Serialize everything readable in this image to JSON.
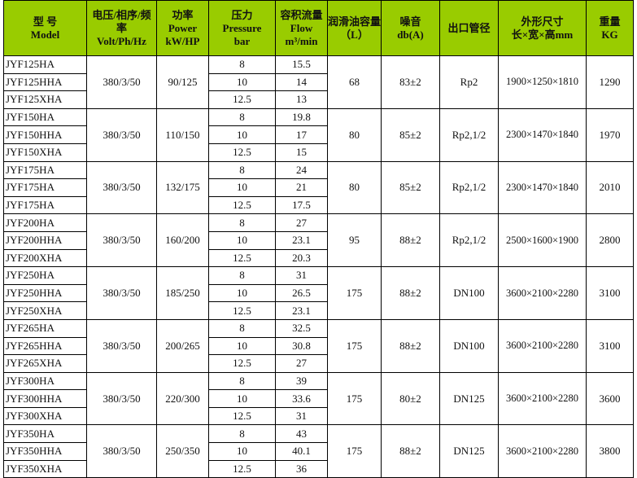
{
  "headers": [
    {
      "l1": "型 号",
      "l2": "Model"
    },
    {
      "l1": "电压/相序/频率",
      "l2": "Volt/Ph/Hz"
    },
    {
      "l1": "功率",
      "l2": "Power",
      "l3": "kW/HP"
    },
    {
      "l1": "压力",
      "l2": "Pressure",
      "l3": "bar"
    },
    {
      "l1": "容积流量",
      "l2": "Flow",
      "l3": "m³/min"
    },
    {
      "l1": "润滑油容量（L）"
    },
    {
      "l1": "噪音",
      "l2": "db(A)"
    },
    {
      "l1": "出口管径"
    },
    {
      "l1": "外形尺寸",
      "l2": "长×宽×高mm"
    },
    {
      "l1": "重量",
      "l2": "KG"
    }
  ],
  "groups": [
    {
      "models": [
        "JYF125HA",
        "JYF125HHA",
        "JYF125XHA"
      ],
      "volt": "380/3/50",
      "power": "90/125",
      "pressure": [
        "8",
        "10",
        "12.5"
      ],
      "flow": [
        "15.5",
        "14",
        "13"
      ],
      "oil": "68",
      "noise": "83±2",
      "outlet": "Rp2",
      "dims": "1900×1250×1810",
      "weight": "1290"
    },
    {
      "models": [
        "JYF150HA",
        "JYF150HHA",
        "JYF150XHA"
      ],
      "volt": "380/3/50",
      "power": "110/150",
      "pressure": [
        "8",
        "10",
        "12.5"
      ],
      "flow": [
        "19.8",
        "17",
        "15"
      ],
      "oil": "80",
      "noise": "85±2",
      "outlet": "Rp2,1/2",
      "dims": "2300×1470×1840",
      "weight": "1970"
    },
    {
      "models": [
        "JYF175HA",
        "JYF175HA",
        "JYF175HA"
      ],
      "volt": "380/3/50",
      "power": "132/175",
      "pressure": [
        "8",
        "10",
        "12.5"
      ],
      "flow": [
        "24",
        "21",
        "17.5"
      ],
      "oil": "80",
      "noise": "85±2",
      "outlet": "Rp2,1/2",
      "dims": "2300×1470×1840",
      "weight": "2010"
    },
    {
      "models": [
        "JYF200HA",
        "JYF200HHA",
        "JYF200XHA"
      ],
      "volt": "380/3/50",
      "power": "160/200",
      "pressure": [
        "8",
        "10",
        "12.5"
      ],
      "flow": [
        "27",
        "23.1",
        "20.3"
      ],
      "oil": "95",
      "noise": "88±2",
      "outlet": "Rp2,1/2",
      "dims": "2500×1600×1900",
      "weight": "2800"
    },
    {
      "models": [
        "JYF250HA",
        "JYF250HHA",
        "JYF250XHA"
      ],
      "volt": "380/3/50",
      "power": "185/250",
      "pressure": [
        "8",
        "10",
        "12.5"
      ],
      "flow": [
        "31",
        "26.5",
        "23.1"
      ],
      "oil": "175",
      "noise": "88±2",
      "outlet": "DN100",
      "dims": "3600×2100×2280",
      "weight": "3100"
    },
    {
      "models": [
        "JYF265HA",
        "JYF265HHA",
        "JYF265XHA"
      ],
      "volt": "380/3/50",
      "power": "200/265",
      "pressure": [
        "8",
        "10",
        "12.5"
      ],
      "flow": [
        "32.5",
        "30.8",
        "27"
      ],
      "oil": "175",
      "noise": "88±2",
      "outlet": "DN100",
      "dims": "3600×2100×2280",
      "weight": "3100"
    },
    {
      "models": [
        "JYF300HA",
        "JYF300HHA",
        "JYF300XHA"
      ],
      "volt": "380/3/50",
      "power": "220/300",
      "pressure": [
        "8",
        "10",
        "12.5"
      ],
      "flow": [
        "39",
        "33.6",
        "31"
      ],
      "oil": "175",
      "noise": "80±2",
      "outlet": "DN125",
      "dims": "3600×2100×2280",
      "weight": "3600"
    },
    {
      "models": [
        "JYF350HA",
        "JYF350HHA",
        "JYF350XHA"
      ],
      "volt": "380/3/50",
      "power": "250/350",
      "pressure": [
        "8",
        "10",
        "12.5"
      ],
      "flow": [
        "43",
        "40.1",
        "36"
      ],
      "oil": "175",
      "noise": "88±2",
      "outlet": "DN125",
      "dims": "3600×2100×2280",
      "weight": "3800"
    }
  ]
}
